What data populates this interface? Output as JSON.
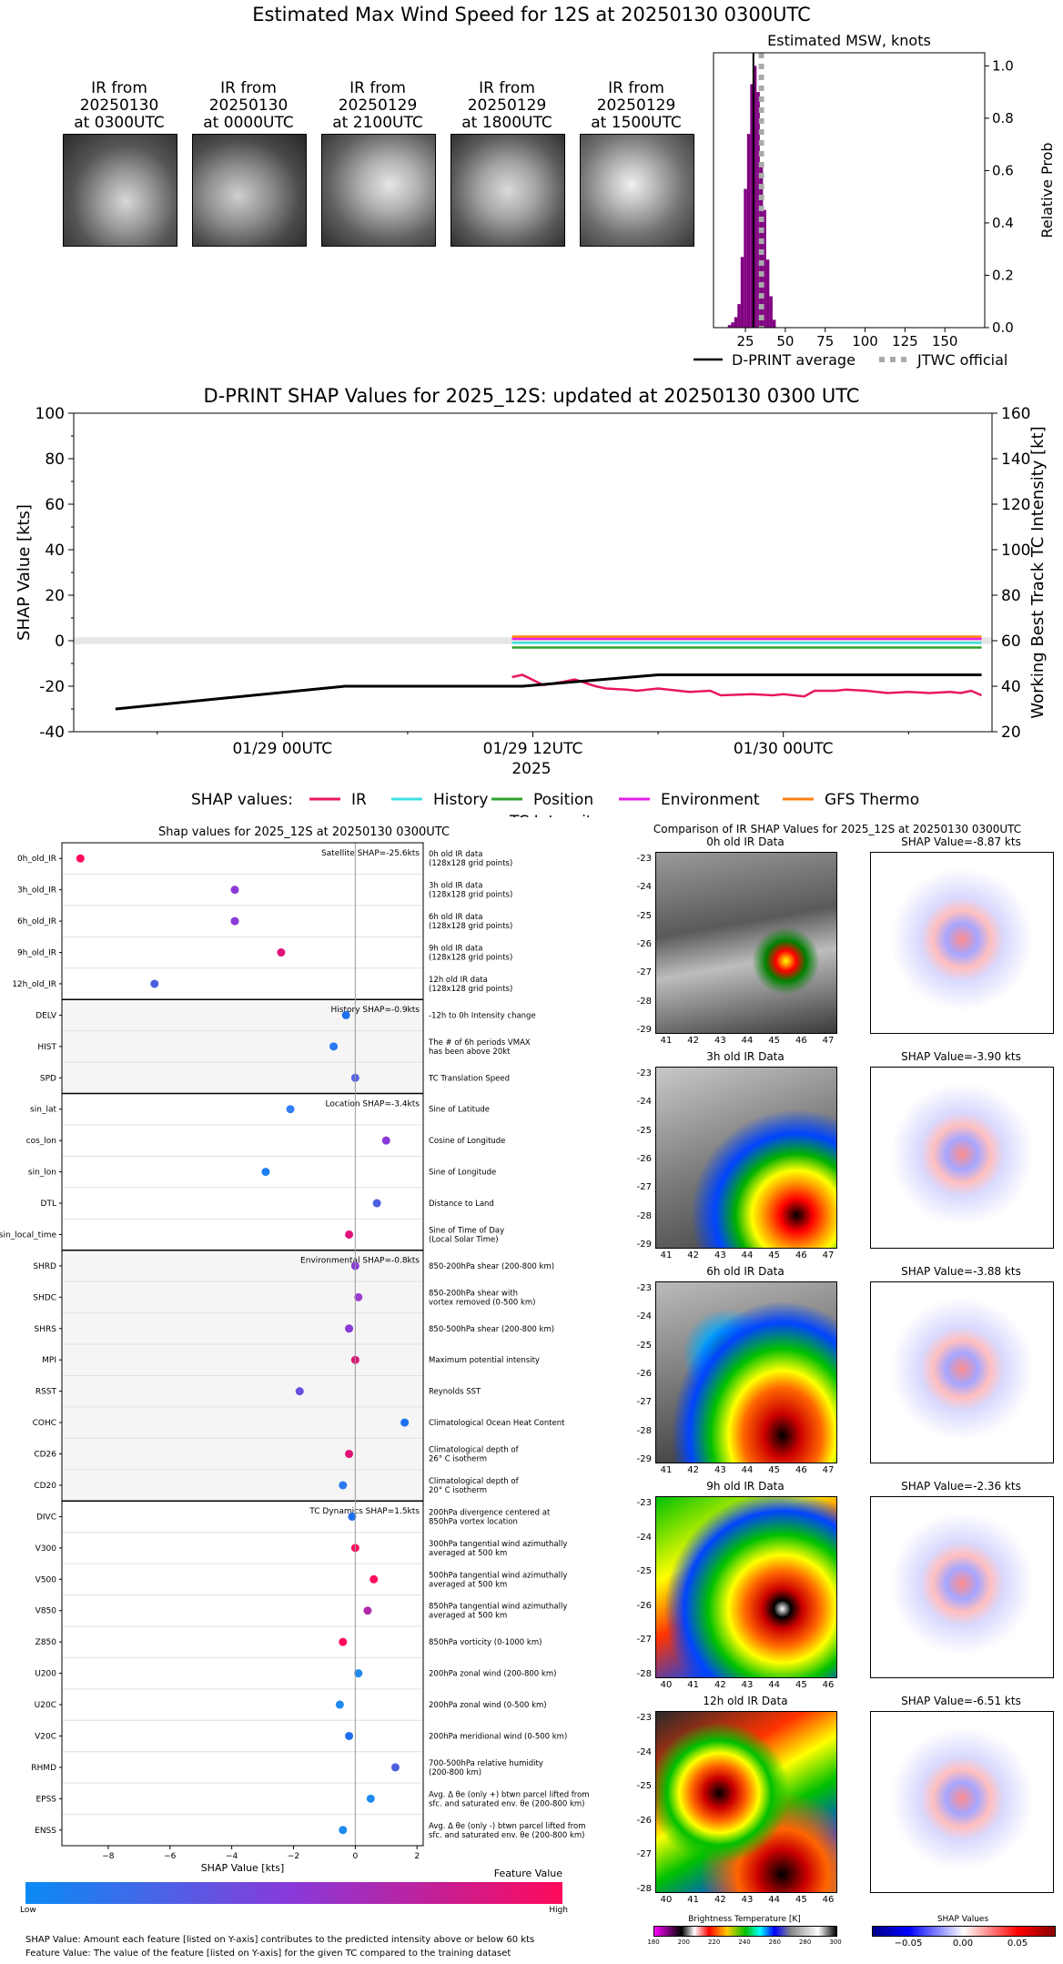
{
  "main_title": "Estimated Max Wind Speed for 12S at 20250130 0300UTC",
  "ir_images": [
    {
      "title": [
        "IR from",
        "20250130",
        "at 0300UTC"
      ]
    },
    {
      "title": [
        "IR from",
        "20250130",
        "at 0000UTC"
      ]
    },
    {
      "title": [
        "IR from",
        "20250129",
        "at 2100UTC"
      ]
    },
    {
      "title": [
        "IR from",
        "20250129",
        "at 1800UTC"
      ]
    },
    {
      "title": [
        "IR from",
        "20250129",
        "at 1500UTC"
      ]
    }
  ],
  "hist_panel": {
    "title": "Estimated MSW, knots",
    "ylabel": "Relative Prob",
    "legend": [
      "D-PRINT average",
      "JTWC official"
    ]
  },
  "shap_ts_title": "D-PRINT SHAP Values for 2025_12S: updated at 20250130 0300 UTC",
  "shap_ts_xlabel": "2025",
  "shap_ts_ylabel": "SHAP Value [kts]",
  "shap_ts_y2label": "Working Best Track TC Intensity [kt]",
  "shap_ts_legend_title": "SHAP values:",
  "shap_ts_legend": [
    "IR",
    "History",
    "Position",
    "Environment",
    "GFS Thermo",
    "TC Intensity"
  ],
  "shap_feat_title": "Shap values for 2025_12S at 20250130 0300UTC",
  "shap_feat_xlabel": "SHAP Value [kts]",
  "colorbar": {
    "title": "Feature Value",
    "low": "Low",
    "high": "High"
  },
  "footnotes": [
    "SHAP Value: Amount each feature [listed on Y-axis] contributes to the predicted intensity above or below 60 kts",
    "Feature Value: The value of the feature [listed on Y-axis] for the given TC compared to the training dataset"
  ],
  "ir_compare_title": "Comparison of IR SHAP Values for 2025_12S at 20250130 0300UTC",
  "ir_compare_rows": [
    {
      "ir_title": "0h old IR Data",
      "shap_title": "SHAP Value=-8.87 kts",
      "xticks": [
        "41",
        "42",
        "43",
        "44",
        "45",
        "46",
        "47"
      ],
      "yticks": [
        "-23",
        "-24",
        "-25",
        "-26",
        "-27",
        "-28",
        "-29"
      ]
    },
    {
      "ir_title": "3h old IR Data",
      "shap_title": "SHAP Value=-3.90 kts",
      "xticks": [
        "41",
        "42",
        "43",
        "44",
        "45",
        "46",
        "47"
      ],
      "yticks": [
        "-23",
        "-24",
        "-25",
        "-26",
        "-27",
        "-28",
        "-29"
      ]
    },
    {
      "ir_title": "6h old IR Data",
      "shap_title": "SHAP Value=-3.88 kts",
      "xticks": [
        "41",
        "42",
        "43",
        "44",
        "45",
        "46",
        "47"
      ],
      "yticks": [
        "-23",
        "-24",
        "-25",
        "-26",
        "-27",
        "-28",
        "-29"
      ]
    },
    {
      "ir_title": "9h old IR Data",
      "shap_title": "SHAP Value=-2.36 kts",
      "xticks": [
        "40",
        "41",
        "42",
        "43",
        "44",
        "45",
        "46"
      ],
      "yticks": [
        "-23",
        "-24",
        "-25",
        "-26",
        "-27",
        "-28"
      ]
    },
    {
      "ir_title": "12h old IR Data",
      "shap_title": "SHAP Value=-6.51 kts",
      "xticks": [
        "40",
        "41",
        "42",
        "43",
        "44",
        "45",
        "46"
      ],
      "yticks": [
        "-23",
        "-24",
        "-25",
        "-26",
        "-27",
        "-28"
      ]
    }
  ],
  "bt_colorbar": {
    "title": "Brightness Temperature [K]",
    "ticks": [
      "180",
      "200",
      "220",
      "240",
      "260",
      "280",
      "300"
    ]
  },
  "shap_colorbar": {
    "title": "SHAP Values",
    "ticks": [
      "−0.05",
      "0.00",
      "0.05"
    ]
  },
  "chart_data": [
    {
      "type": "bar",
      "title": "Estimated MSW, knots",
      "ylabel": "Relative Prob",
      "xlim": [
        5,
        175
      ],
      "ylim": [
        0,
        1.05
      ],
      "xticks": [
        25,
        50,
        75,
        100,
        125,
        150
      ],
      "yticks": [
        0.0,
        0.2,
        0.4,
        0.6,
        0.8,
        1.0
      ],
      "bins": [
        15,
        17,
        19,
        21,
        23,
        25,
        27,
        29,
        31,
        33,
        35,
        37,
        39,
        41,
        43
      ],
      "values": [
        0.01,
        0.02,
        0.04,
        0.09,
        0.27,
        0.53,
        0.74,
        0.93,
        1.0,
        0.9,
        0.62,
        0.45,
        0.26,
        0.12,
        0.03
      ],
      "dprint_average": 30,
      "jtwc_official": 35
    },
    {
      "type": "line",
      "title": "D-PRINT SHAP Values for 2025_12S: updated at 20250130 0300 UTC",
      "xlabel": "2025",
      "ylabel": "SHAP Value [kts]",
      "y2label": "Working Best Track TC Intensity [kt]",
      "xticks": [
        "01/29 00UTC",
        "01/29 12UTC",
        "01/30 00UTC"
      ],
      "ylim": [
        -40,
        100
      ],
      "y2lim": [
        20,
        160
      ],
      "x_hours": [
        0,
        1,
        2,
        3,
        4,
        5,
        6,
        7,
        8,
        9,
        10,
        11,
        12,
        13,
        14,
        15,
        16,
        17,
        18,
        19,
        20,
        21,
        22,
        23,
        24,
        25,
        26,
        27
      ],
      "series": [
        {
          "name": "IR",
          "x": [
            11,
            11.5,
            12.5,
            13.5,
            14,
            15,
            15.5,
            16.5,
            17,
            18,
            19,
            19.5,
            20.5,
            21,
            22.5,
            23.5,
            24,
            25,
            25.5,
            26.5,
            27,
            28,
            29,
            30,
            31,
            32,
            32.5,
            33,
            33.5
          ],
          "y": [
            -16,
            -15,
            -19.5,
            -18,
            -17,
            -20,
            -21,
            -21.5,
            -22,
            -21,
            -22,
            -22.5,
            -22,
            -24,
            -23.5,
            -24,
            -23.5,
            -24.5,
            -22,
            -22,
            -21.5,
            -22,
            -23,
            -22.5,
            -23,
            -22.5,
            -23,
            -22,
            -24
          ]
        },
        {
          "name": "History",
          "x": [
            11,
            33.5
          ],
          "y": [
            -0.9,
            -0.9
          ]
        },
        {
          "name": "Position",
          "x": [
            11,
            33.5
          ],
          "y": [
            -3.0,
            -3.0
          ]
        },
        {
          "name": "Environment",
          "x": [
            11,
            33.5
          ],
          "y": [
            0.8,
            0.8
          ]
        },
        {
          "name": "GFS Thermo",
          "x": [
            11,
            33.5
          ],
          "y": [
            1.8,
            1.8
          ]
        },
        {
          "name": "TC Intensity",
          "axis": "right",
          "x": [
            -8,
            3,
            11.5,
            18,
            33.5
          ],
          "y": [
            30,
            40,
            40,
            45,
            45
          ]
        }
      ]
    },
    {
      "type": "scatter",
      "title": "Shap values for 2025_12S at 20250130 0300UTC",
      "xlabel": "SHAP Value [kts]",
      "xlim": [
        -9.5,
        2.2
      ],
      "xticks": [
        -8,
        -6,
        -4,
        -2,
        0,
        2
      ],
      "groups": [
        {
          "label": "Satellite SHAP=-25.6kts",
          "shaded": false,
          "features": [
            {
              "name": "0h_old_IR",
              "shap": -8.9,
              "color": "#ff0a5a",
              "desc": [
                "0h old IR data",
                "(128x128 grid points)"
              ]
            },
            {
              "name": "3h_old_IR",
              "shap": -3.9,
              "color": "#8a39d9",
              "desc": [
                "3h old IR data",
                "(128x128 grid points)"
              ]
            },
            {
              "name": "6h_old_IR",
              "shap": -3.9,
              "color": "#8a39d9",
              "desc": [
                "6h old IR data",
                "(128x128 grid points)"
              ]
            },
            {
              "name": "9h_old_IR",
              "shap": -2.4,
              "color": "#e0137a",
              "desc": [
                "9h old IR data",
                "(128x128 grid points)"
              ]
            },
            {
              "name": "12h_old_IR",
              "shap": -6.5,
              "color": "#4b5fe0",
              "desc": [
                "12h old IR data",
                "(128x128 grid points)"
              ]
            }
          ]
        },
        {
          "label": "History SHAP=-0.9kts",
          "shaded": true,
          "features": [
            {
              "name": "DELV",
              "shap": -0.3,
              "color": "#1e6ff0",
              "desc": [
                "-12h to 0h Intensity change"
              ]
            },
            {
              "name": "HIST",
              "shap": -0.7,
              "color": "#2a7af0",
              "desc": [
                "The # of 6h periods VMAX",
                "has been above 20kt"
              ]
            },
            {
              "name": "SPD",
              "shap": 0.0,
              "color": "#5a63e6",
              "desc": [
                "TC Translation Speed"
              ]
            }
          ]
        },
        {
          "label": "Location SHAP=-3.4kts",
          "shaded": false,
          "features": [
            {
              "name": "sin_lat",
              "shap": -2.1,
              "color": "#2f7ef5",
              "desc": [
                "Sine of Latitude"
              ]
            },
            {
              "name": "cos_lon",
              "shap": 1.0,
              "color": "#8a39d9",
              "desc": [
                "Cosine of Longitude"
              ]
            },
            {
              "name": "sin_lon",
              "shap": -2.9,
              "color": "#1d7ff2",
              "desc": [
                "Sine of Longitude"
              ]
            },
            {
              "name": "DTL",
              "shap": 0.7,
              "color": "#4b5fe0",
              "desc": [
                "Distance to Land"
              ]
            },
            {
              "name": "sin_local_time",
              "shap": -0.2,
              "color": "#e0137a",
              "desc": [
                "Sine of Time of Day",
                "(Local Solar Time)"
              ]
            }
          ]
        },
        {
          "label": "Environmental SHAP=-0.8kts",
          "shaded": true,
          "features": [
            {
              "name": "SHRD",
              "shap": 0.0,
              "color": "#8a39d9",
              "desc": [
                "850-200hPa shear (200-800 km)"
              ]
            },
            {
              "name": "SHDC",
              "shap": 0.1,
              "color": "#9a3cd0",
              "desc": [
                "850-200hPa shear with",
                "vortex removed (0-500 km)"
              ]
            },
            {
              "name": "SHRS",
              "shap": -0.2,
              "color": "#8a39d9",
              "desc": [
                "850-500hPa shear (200-800 km)"
              ]
            },
            {
              "name": "MPI",
              "shap": 0.0,
              "color": "#e0137a",
              "desc": [
                "Maximum potential intensity"
              ]
            },
            {
              "name": "RSST",
              "shap": -1.8,
              "color": "#6a4fe0",
              "desc": [
                "Reynolds SST"
              ]
            },
            {
              "name": "COHC",
              "shap": 1.6,
              "color": "#1e6ff0",
              "desc": [
                "Climatological Ocean Heat Content"
              ]
            },
            {
              "name": "CD26",
              "shap": -0.2,
              "color": "#e0137a",
              "desc": [
                "Climatological depth of",
                "26° C isotherm"
              ]
            },
            {
              "name": "CD20",
              "shap": -0.4,
              "color": "#2a7af0",
              "desc": [
                "Climatological depth of",
                "20° C isotherm"
              ]
            }
          ]
        },
        {
          "label": "TC Dynamics SHAP=1.5kts",
          "shaded": false,
          "features": [
            {
              "name": "DIVC",
              "shap": -0.1,
              "color": "#1e6ff0",
              "desc": [
                "200hPa divergence centered at",
                "850hPa vortex location"
              ]
            },
            {
              "name": "V300",
              "shap": 0.0,
              "color": "#ff0a5a",
              "desc": [
                "300hPa tangential wind azimuthally",
                "averaged at 500 km"
              ]
            },
            {
              "name": "V500",
              "shap": 0.6,
              "color": "#ff0a5a",
              "desc": [
                "500hPa tangential wind azimuthally",
                "averaged at 500 km"
              ]
            },
            {
              "name": "V850",
              "shap": 0.4,
              "color": "#b02aa8",
              "desc": [
                "850hPa tangential wind azimuthally",
                "averaged at 500 km"
              ]
            },
            {
              "name": "Z850",
              "shap": -0.4,
              "color": "#ff0a5a",
              "desc": [
                "850hPa vorticity (0-1000 km)"
              ]
            },
            {
              "name": "U200",
              "shap": 0.1,
              "color": "#1e8af0",
              "desc": [
                "200hPa zonal wind (200-800 km)"
              ]
            },
            {
              "name": "U20C",
              "shap": -0.5,
              "color": "#1e8af0",
              "desc": [
                "200hPa zonal wind (0-500 km)"
              ]
            },
            {
              "name": "V20C",
              "shap": -0.2,
              "color": "#1e6ff0",
              "desc": [
                "200hPa meridional wind (0-500 km)"
              ]
            },
            {
              "name": "RHMD",
              "shap": 1.3,
              "color": "#4b5fe0",
              "desc": [
                "700-500hPa relative humidity",
                "(200-800 km)"
              ]
            },
            {
              "name": "EPSS",
              "shap": 0.5,
              "color": "#1e8af0",
              "desc": [
                "Avg. Δ θe (only +) btwn parcel lifted from",
                "sfc. and saturated env. θe (200-800 km)"
              ]
            },
            {
              "name": "ENSS",
              "shap": -0.4,
              "color": "#1e8af0",
              "desc": [
                "Avg. Δ θe (only -) btwn parcel lifted from",
                "sfc. and saturated env. θe (200-800 km)"
              ]
            }
          ]
        }
      ]
    }
  ]
}
